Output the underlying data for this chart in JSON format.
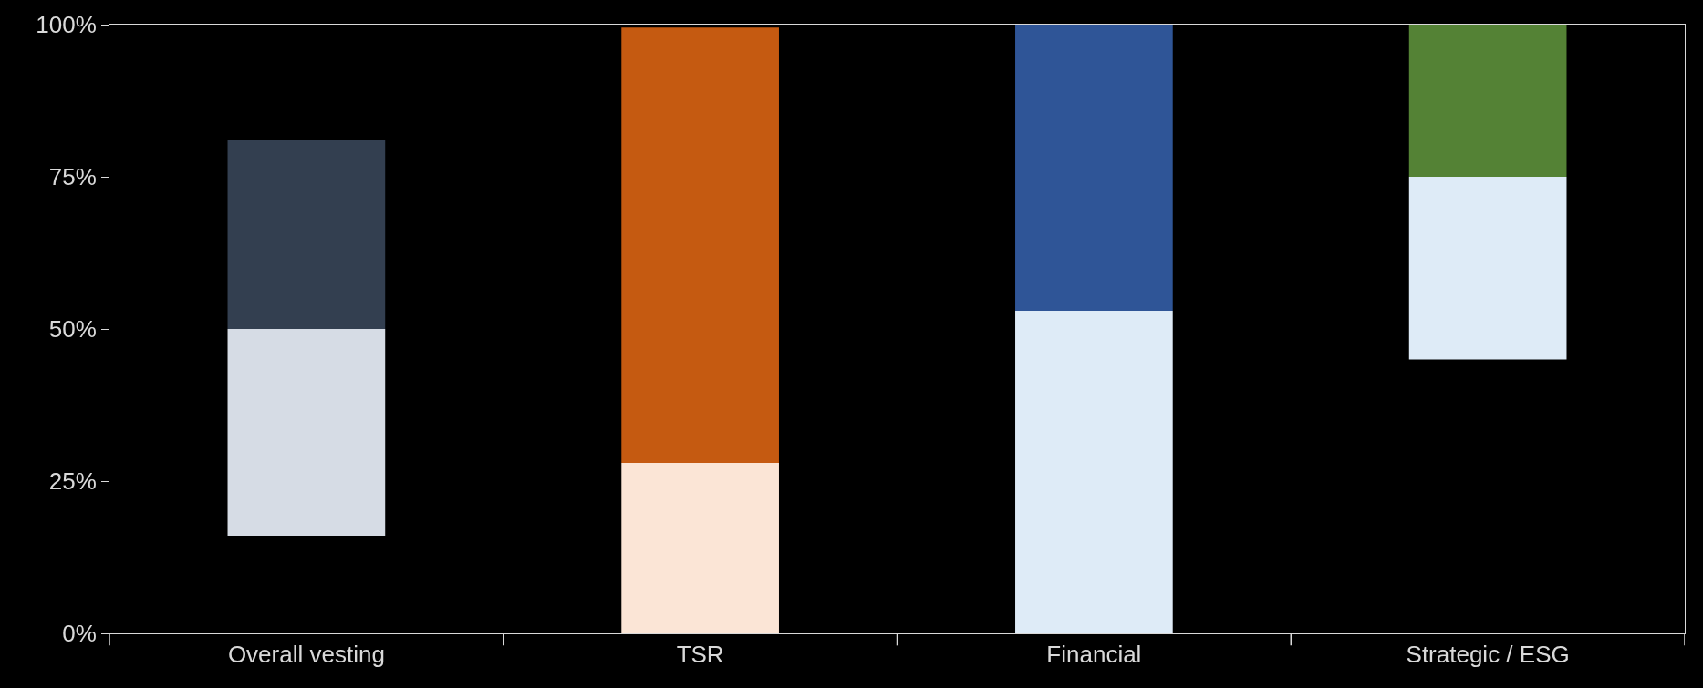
{
  "chart_data": {
    "type": "bar",
    "stacked": true,
    "categories": [
      "Overall vesting",
      "TSR",
      "Financial",
      "Strategic / ESG"
    ],
    "series": [
      {
        "values": [
          34,
          28,
          53,
          30
        ],
        "base": [
          16,
          0,
          0,
          45
        ],
        "colors": [
          "#d6dce5",
          "#fbe5d6",
          "#deebf7",
          "#deebf7"
        ]
      },
      {
        "values": [
          31,
          71.5,
          47,
          25
        ],
        "colors": [
          "#333f50",
          "#c55a11",
          "#2f5597",
          "#548235"
        ]
      }
    ],
    "ylim": [
      0,
      100
    ],
    "yticks": [
      {
        "value": 0,
        "label": "0%"
      },
      {
        "value": 25,
        "label": "25%"
      },
      {
        "value": 50,
        "label": "50%"
      },
      {
        "value": 75,
        "label": "75%"
      },
      {
        "value": 100,
        "label": "100%"
      }
    ],
    "grid": false
  }
}
